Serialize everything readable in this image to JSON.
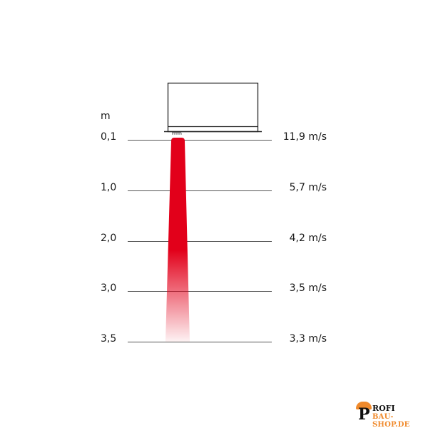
{
  "unit_label": "m",
  "rows": [
    {
      "distance": "0,1",
      "speed": "11,9 m/s"
    },
    {
      "distance": "1,0",
      "speed": "5,7 m/s"
    },
    {
      "distance": "2,0",
      "speed": "4,2 m/s"
    },
    {
      "distance": "3,0",
      "speed": "3,5 m/s"
    },
    {
      "distance": "3,5",
      "speed": "3,3 m/s"
    }
  ],
  "colors": {
    "beam": "#e2001a",
    "lines": "#555555",
    "logo_accent": "#f08a2c"
  },
  "logo": {
    "line1": "ROFI",
    "initial": "P",
    "line2": "BAU-SHOP.DE"
  }
}
